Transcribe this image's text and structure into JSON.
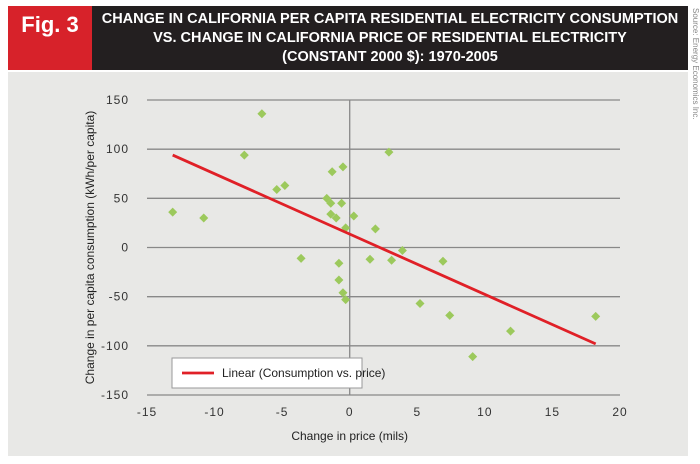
{
  "figure_label": "Fig. 3",
  "source": "Source: Energy Economics Inc.",
  "chart_data": {
    "type": "scatter",
    "title_lines": [
      "Change in California Per Capita Residential Electricity Consumption",
      "vs. Change in California Price of Residential Electricity",
      "(constant 2000 $): 1970-2005"
    ],
    "xlabel": "Change in price (mils)",
    "ylabel": "Change in per capita consumption (kWh/per capita)",
    "xlim": [
      -15,
      20
    ],
    "ylim": [
      -150,
      150
    ],
    "xticks": [
      -15,
      -10,
      -5,
      0,
      5,
      10,
      15,
      20
    ],
    "yticks": [
      150,
      100,
      50,
      0,
      -50,
      -100,
      -150
    ],
    "grid": "horizontal",
    "legend_position": "bottom-left",
    "colors": {
      "points": "#9cc95c",
      "trendline": "#e02027"
    },
    "points": [
      [
        -13.1,
        36
      ],
      [
        -10.8,
        30
      ],
      [
        -7.8,
        94
      ],
      [
        -6.5,
        136
      ],
      [
        -5.4,
        59
      ],
      [
        -4.8,
        63
      ],
      [
        -3.6,
        -11
      ],
      [
        -1.3,
        77
      ],
      [
        -0.5,
        82
      ],
      [
        -1.7,
        50
      ],
      [
        -1.4,
        45
      ],
      [
        -0.6,
        45
      ],
      [
        -1.4,
        34
      ],
      [
        -1.0,
        30
      ],
      [
        -0.3,
        20
      ],
      [
        0.3,
        32
      ],
      [
        1.9,
        19
      ],
      [
        -0.8,
        -16
      ],
      [
        -0.8,
        -33
      ],
      [
        -0.5,
        -46
      ],
      [
        -0.3,
        -53
      ],
      [
        2.9,
        97
      ],
      [
        1.5,
        -12
      ],
      [
        3.1,
        -13
      ],
      [
        3.9,
        -3
      ],
      [
        6.9,
        -14
      ],
      [
        5.2,
        -57
      ],
      [
        7.4,
        -69
      ],
      [
        11.9,
        -85
      ],
      [
        9.1,
        -111
      ],
      [
        18.2,
        -70
      ]
    ],
    "trendline": {
      "name": "Linear (Consumption vs. price)",
      "points": [
        [
          -13.1,
          94
        ],
        [
          18.2,
          -98
        ]
      ]
    }
  }
}
